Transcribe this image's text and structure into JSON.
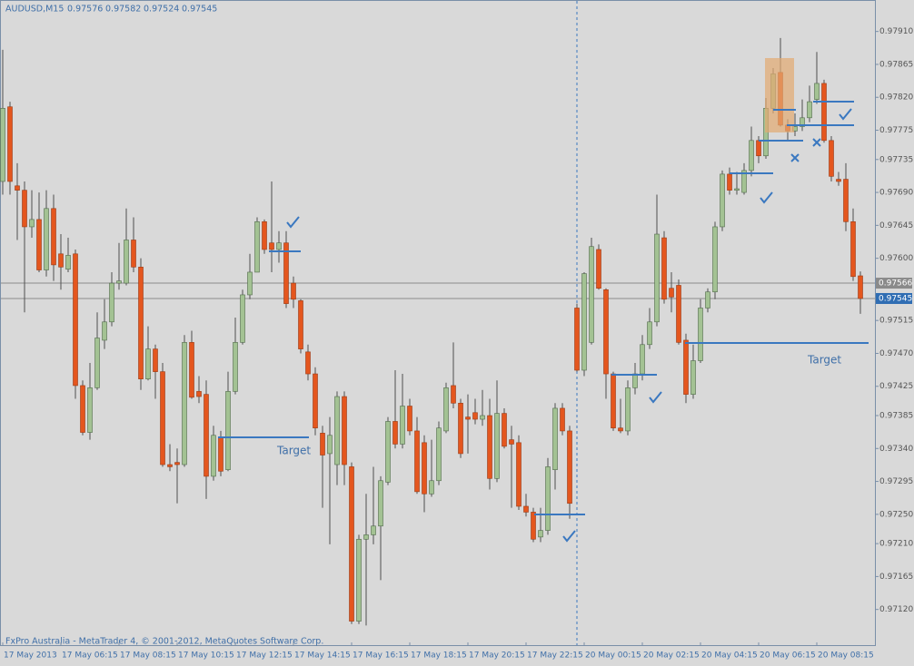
{
  "chart_data": {
    "type": "candlestick",
    "title": "AUDUSD,M15",
    "header_values": [
      0.97576,
      0.97582,
      0.97524,
      0.97545
    ],
    "footer": "FxPro Australia - MetaTrader 4, © 2001-2012, MetaQuotes Software Corp.",
    "annotations": [
      "Target",
      "Target"
    ],
    "bull_color": "#a3c293",
    "bear_color": "#e4561e",
    "price_lines": [
      0.97566,
      0.97545
    ],
    "ylim": [
      0.9707,
      0.97953
    ],
    "yticks": [
      {
        "value": 0.9791,
        "label": "0.97910"
      },
      0.97865,
      {
        "value": 0.9782,
        "label": "0.97820"
      },
      0.97775,
      0.97735,
      {
        "value": 0.9769,
        "label": "0.97690"
      },
      0.97645,
      {
        "value": 0.976,
        "label": "0.97600"
      },
      0.97515,
      {
        "value": 0.9747,
        "label": "0.97470"
      },
      0.97425,
      0.97385,
      {
        "value": 0.9734,
        "label": "0.97340"
      },
      0.97295,
      {
        "value": 0.9725,
        "label": "0.97250"
      },
      {
        "value": 0.9721,
        "label": "0.97210"
      },
      0.97165,
      {
        "value": 0.9712,
        "label": "0.97120"
      }
    ],
    "categories": [
      "17 May 2013",
      null,
      null,
      null,
      null,
      null,
      null,
      null,
      "17 May 06:15",
      null,
      null,
      null,
      null,
      null,
      null,
      null,
      "17 May 08:15",
      null,
      null,
      null,
      null,
      null,
      null,
      null,
      "17 May 10:15",
      null,
      null,
      null,
      null,
      null,
      null,
      null,
      "17 May 12:15",
      null,
      null,
      null,
      null,
      null,
      null,
      null,
      "17 May 14:15",
      null,
      null,
      null,
      null,
      null,
      null,
      null,
      "17 May 16:15",
      null,
      null,
      null,
      null,
      null,
      null,
      null,
      "17 May 18:15",
      null,
      null,
      null,
      null,
      null,
      null,
      null,
      "17 May 20:15",
      null,
      null,
      null,
      null,
      null,
      null,
      null,
      "17 May 22:15",
      null,
      null,
      null,
      null,
      null,
      null,
      null,
      "20 May 00:15",
      null,
      null,
      null,
      null,
      null,
      null,
      null,
      "20 May 02:15",
      null,
      null,
      null,
      null,
      null,
      null,
      null,
      "20 May 04:15",
      null,
      null,
      null,
      null,
      null,
      null,
      null,
      "20 May 06:15",
      null,
      null,
      null,
      null,
      null,
      null,
      null,
      "20 May 08:15",
      null,
      null,
      null,
      null,
      null,
      null
    ],
    "open": [
      0.97705,
      0.97807,
      0.97699,
      0.97693,
      0.97643,
      0.97653,
      0.97584,
      0.97668,
      0.97606,
      0.97585,
      0.97606,
      0.97426,
      0.97362,
      0.97423,
      0.97488,
      0.97513,
      0.97566,
      0.97566,
      0.97625,
      0.97588,
      0.97435,
      0.97476,
      0.97445,
      0.97318,
      0.97321,
      0.97318,
      0.97485,
      0.97418,
      0.97414,
      0.97302,
      0.97356,
      0.97311,
      0.97418,
      0.97485,
      0.9755,
      0.97581,
      0.9765,
      0.97621,
      0.97612,
      0.97621,
      0.97566,
      0.97542,
      0.97472,
      0.97442,
      0.97361,
      0.97333,
      0.97318,
      0.97411,
      0.97315,
      0.97104,
      0.97216,
      0.97222,
      0.97234,
      0.97294,
      0.97377,
      0.97346,
      0.97398,
      0.97364,
      0.97348,
      0.97278,
      0.97296,
      0.97364,
      0.97426,
      0.97402,
      0.97383,
      0.97389,
      0.9738,
      0.97385,
      0.97299,
      0.97388,
      0.97352,
      0.97348,
      0.97261,
      0.97253,
      0.97219,
      0.97228,
      0.97311,
      0.97395,
      0.97364,
      0.97532,
      0.97447,
      0.97485,
      0.97612,
      0.97557,
      0.97442,
      0.97368,
      0.97364,
      0.97423,
      0.97442,
      0.97482,
      0.97513,
      0.97628,
      0.97559,
      0.97563,
      0.97488,
      0.97414,
      0.9746,
      0.97532,
      0.97554,
      0.97643,
      0.97715,
      0.97693,
      0.9769,
      0.9772,
      0.97761,
      0.9774,
      0.97805,
      0.97854,
      0.97782,
      0.97774,
      0.9778,
      0.97792,
      0.97817,
      0.97839,
      0.97761,
      0.97708,
      0.97708,
      0.9765,
      0.97576
    ],
    "high": [
      0.97885,
      0.97814,
      0.9773,
      0.97705,
      0.97693,
      0.9769,
      0.97693,
      0.97687,
      0.97633,
      0.97628,
      0.97612,
      0.97433,
      0.97457,
      0.97526,
      0.97544,
      0.97581,
      0.97621,
      0.97668,
      0.97656,
      0.976,
      0.97507,
      0.97482,
      0.97457,
      0.97346,
      0.9734,
      0.97495,
      0.97501,
      0.97439,
      0.97433,
      0.97371,
      0.97364,
      0.97445,
      0.97519,
      0.97557,
      0.97606,
      0.97656,
      0.97653,
      0.97705,
      0.97637,
      0.97637,
      0.97575,
      0.97544,
      0.97482,
      0.97451,
      0.97371,
      0.97383,
      0.97418,
      0.97418,
      0.97321,
      0.97222,
      0.97278,
      0.97315,
      0.97302,
      0.97383,
      0.97447,
      0.97442,
      0.97408,
      0.97383,
      0.97358,
      0.97352,
      0.97377,
      0.9743,
      0.97485,
      0.97408,
      0.97414,
      0.97408,
      0.9742,
      0.97408,
      0.97433,
      0.97395,
      0.97371,
      0.97358,
      0.97278,
      0.97259,
      0.97259,
      0.97327,
      0.97402,
      0.97402,
      0.97371,
      0.97538,
      0.97581,
      0.97628,
      0.97619,
      0.97559,
      0.97445,
      0.97408,
      0.97433,
      0.97457,
      0.97495,
      0.97532,
      0.97687,
      0.97637,
      0.97581,
      0.97571,
      0.97497,
      0.97482,
      0.97544,
      0.97559,
      0.9765,
      0.9772,
      0.97724,
      0.97718,
      0.9773,
      0.9778,
      0.97767,
      0.97819,
      0.9786,
      0.97901,
      0.9779,
      0.97798,
      0.97817,
      0.97836,
      0.97882,
      0.97844,
      0.97767,
      0.97718,
      0.9773,
      0.97668,
      0.97582
    ],
    "low": [
      0.97687,
      0.97687,
      0.97625,
      0.97526,
      0.97628,
      0.97581,
      0.97575,
      0.97569,
      0.97557,
      0.97581,
      0.97408,
      0.97358,
      0.97352,
      0.9742,
      0.97476,
      0.97507,
      0.97557,
      0.97563,
      0.97581,
      0.9742,
      0.97433,
      0.97408,
      0.97315,
      0.97309,
      0.97265,
      0.97315,
      0.97408,
      0.97402,
      0.97271,
      0.97296,
      0.97302,
      0.97309,
      0.97414,
      0.97482,
      0.97544,
      0.97581,
      0.97606,
      0.97581,
      0.97594,
      0.97532,
      0.97532,
      0.9747,
      0.97433,
      0.97358,
      0.97259,
      0.97209,
      0.9729,
      0.9729,
      0.971,
      0.971,
      0.97098,
      0.97209,
      0.9716,
      0.9729,
      0.9734,
      0.9734,
      0.97358,
      0.97278,
      0.97253,
      0.97274,
      0.9729,
      0.97361,
      0.97395,
      0.97327,
      0.97333,
      0.97373,
      0.97371,
      0.97284,
      0.97294,
      0.9734,
      0.97259,
      0.97256,
      0.97247,
      0.97212,
      0.97212,
      0.97222,
      0.97284,
      0.97358,
      0.97244,
      0.97445,
      0.97439,
      0.97482,
      0.97557,
      0.97408,
      0.97364,
      0.97361,
      0.97358,
      0.97414,
      0.97433,
      0.97476,
      0.97507,
      0.97538,
      0.97526,
      0.97482,
      0.97402,
      0.97408,
      0.97457,
      0.97526,
      0.97544,
      0.97637,
      0.97687,
      0.97687,
      0.97687,
      0.97712,
      0.9773,
      0.97736,
      0.97798,
      0.9778,
      0.97761,
      0.97767,
      0.97774,
      0.97786,
      0.97811,
      0.97758,
      0.97705,
      0.97699,
      0.97637,
      0.97569,
      0.97524
    ],
    "close": [
      0.97805,
      0.97705,
      0.97693,
      0.97643,
      0.97653,
      0.97584,
      0.97668,
      0.97591,
      0.97588,
      0.97604,
      0.97426,
      0.97362,
      0.97423,
      0.97491,
      0.97513,
      0.97566,
      0.97569,
      0.97625,
      0.97588,
      0.97435,
      0.97476,
      0.97445,
      0.97318,
      0.97315,
      0.97318,
      0.97485,
      0.9741,
      0.97411,
      0.97302,
      0.97358,
      0.97309,
      0.97418,
      0.97485,
      0.9755,
      0.97581,
      0.9765,
      0.97612,
      0.97612,
      0.97621,
      0.97538,
      0.97544,
      0.97476,
      0.97442,
      0.97368,
      0.97331,
      0.97358,
      0.97411,
      0.97318,
      0.97104,
      0.97216,
      0.97222,
      0.97234,
      0.97296,
      0.97377,
      0.97346,
      0.97398,
      0.97364,
      0.97281,
      0.97278,
      0.97296,
      0.97368,
      0.97423,
      0.97402,
      0.97333,
      0.9738,
      0.9738,
      0.97385,
      0.97299,
      0.97388,
      0.97343,
      0.97346,
      0.97261,
      0.97253,
      0.97216,
      0.97228,
      0.97315,
      0.97395,
      0.97364,
      0.97265,
      0.97447,
      0.97579,
      0.97616,
      0.97559,
      0.97442,
      0.97368,
      0.97364,
      0.97423,
      0.97442,
      0.97482,
      0.97513,
      0.97633,
      0.97544,
      0.97547,
      0.97485,
      0.97414,
      0.9746,
      0.97532,
      0.97554,
      0.97643,
      0.97715,
      0.97693,
      0.97695,
      0.9772,
      0.97761,
      0.9774,
      0.97805,
      0.97852,
      0.97782,
      0.97774,
      0.9778,
      0.97792,
      0.97814,
      0.97839,
      0.97761,
      0.97712,
      0.97705,
      0.9765,
      0.97575,
      0.97545
    ]
  }
}
